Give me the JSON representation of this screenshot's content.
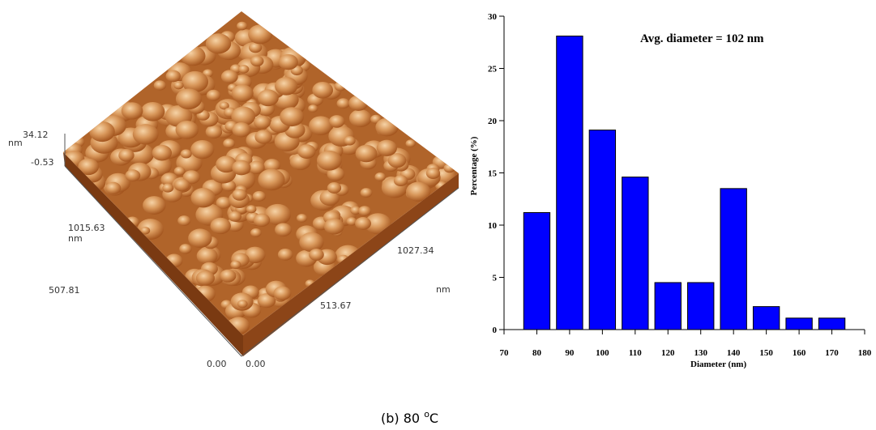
{
  "chart_data": {
    "type": "bar",
    "annotation": "Avg. diameter = 102 nm",
    "xlabel": "Diameter (nm)",
    "ylabel": "Percentage (%)",
    "x": [
      80,
      90,
      100,
      110,
      120,
      130,
      140,
      150,
      160,
      170
    ],
    "values": [
      11.2,
      28.1,
      19.1,
      14.6,
      4.5,
      4.5,
      13.5,
      2.2,
      1.1,
      1.1
    ],
    "color": "#0000ff",
    "xlim": [
      70,
      180
    ],
    "xticks": [
      70,
      80,
      90,
      100,
      110,
      120,
      130,
      140,
      150,
      160,
      170,
      180
    ],
    "ylim": [
      0,
      30
    ],
    "yticks": [
      0,
      5,
      10,
      15,
      20,
      25,
      30
    ]
  },
  "afm_image": {
    "z_max": "34.12",
    "z_unit": "nm",
    "z_min": "-0.53",
    "y_mid_high": "1015.63",
    "y_unit": "nm",
    "y_mid_low": "507.81",
    "y_origin": "0.00",
    "x_origin": "0.00",
    "x_mid_low": "513.67",
    "x_mid_high": "1027.34",
    "x_unit": "nm"
  },
  "caption": {
    "text": "(b) 80",
    "degree": "o",
    "unit": "C"
  }
}
